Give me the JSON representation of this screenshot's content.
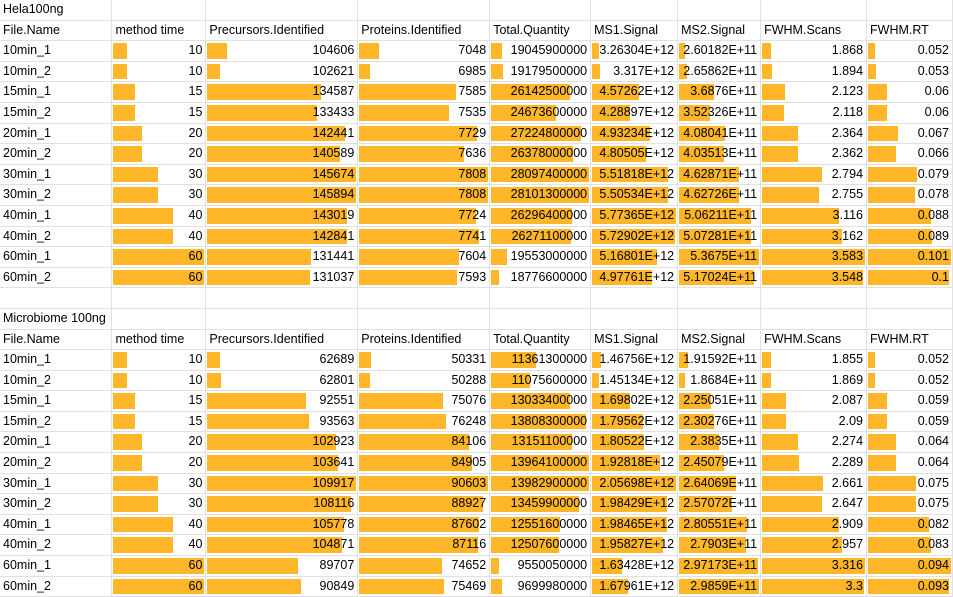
{
  "bar_color": "#ffb628",
  "columns": [
    "File.Name",
    "method time",
    "Precursors.Identified",
    "Proteins.Identified",
    "Total.Quantity",
    "MS1.Signal",
    "MS2.Signal",
    "FWHM.Scans",
    "FWHM.RT"
  ],
  "hela": {
    "title": "Hela100ng",
    "rows": [
      [
        "10min_1",
        "10",
        "104606",
        "7048",
        "19045900000",
        "3.26304E+12",
        "2.60182E+11",
        "1.868",
        "0.052"
      ],
      [
        "10min_2",
        "10",
        "102621",
        "6985",
        "19179500000",
        "3.317E+12",
        "2.65862E+11",
        "1.894",
        "0.053"
      ],
      [
        "15min_1",
        "15",
        "134587",
        "7585",
        "26142500000",
        "4.57262E+12",
        "3.6876E+11",
        "2.123",
        "0.06"
      ],
      [
        "15min_2",
        "15",
        "133433",
        "7535",
        "24673600000",
        "4.28897E+12",
        "3.52326E+11",
        "2.118",
        "0.06"
      ],
      [
        "20min_1",
        "20",
        "142441",
        "7729",
        "27224800000",
        "4.93234E+12",
        "4.08041E+11",
        "2.364",
        "0.067"
      ],
      [
        "20min_2",
        "20",
        "140589",
        "7636",
        "26378000000",
        "4.80505E+12",
        "4.03513E+11",
        "2.362",
        "0.066"
      ],
      [
        "30min_1",
        "30",
        "145674",
        "7808",
        "28097400000",
        "5.51818E+12",
        "4.62871E+11",
        "2.794",
        "0.079"
      ],
      [
        "30min_2",
        "30",
        "145894",
        "7808",
        "28101300000",
        "5.50534E+12",
        "4.62726E+11",
        "2.755",
        "0.078"
      ],
      [
        "40min_1",
        "40",
        "143019",
        "7724",
        "26296400000",
        "5.77365E+12",
        "5.06211E+11",
        "3.116",
        "0.088"
      ],
      [
        "40min_2",
        "40",
        "142841",
        "7741",
        "26271100000",
        "5.72902E+12",
        "5.07281E+11",
        "3.162",
        "0.089"
      ],
      [
        "60min_1",
        "60",
        "131441",
        "7604",
        "19553000000",
        "5.16801E+12",
        "5.3675E+11",
        "3.583",
        "0.101"
      ],
      [
        "60min_2",
        "60",
        "131037",
        "7593",
        "18776600000",
        "4.97761E+12",
        "5.17024E+11",
        "3.548",
        "0.1"
      ]
    ]
  },
  "micro": {
    "title": "Microbiome 100ng",
    "rows": [
      [
        "10min_1",
        "10",
        "62689",
        "50331",
        "11361300000",
        "1.46756E+12",
        "1.91592E+11",
        "1.855",
        "0.052"
      ],
      [
        "10min_2",
        "10",
        "62801",
        "50288",
        "11075600000",
        "1.45134E+12",
        "1.8684E+11",
        "1.869",
        "0.052"
      ],
      [
        "15min_1",
        "15",
        "92551",
        "75076",
        "13033400000",
        "1.69802E+12",
        "2.25051E+11",
        "2.087",
        "0.059"
      ],
      [
        "15min_2",
        "15",
        "93563",
        "76248",
        "13808300000",
        "1.79562E+12",
        "2.30276E+11",
        "2.09",
        "0.059"
      ],
      [
        "20min_1",
        "20",
        "102923",
        "84106",
        "13151100000",
        "1.80522E+12",
        "2.3835E+11",
        "2.274",
        "0.064"
      ],
      [
        "20min_2",
        "20",
        "103641",
        "84905",
        "13964100000",
        "1.92818E+12",
        "2.45079E+11",
        "2.289",
        "0.064"
      ],
      [
        "30min_1",
        "30",
        "109917",
        "90603",
        "13982900000",
        "2.05698E+12",
        "2.64069E+11",
        "2.661",
        "0.075"
      ],
      [
        "30min_2",
        "30",
        "108116",
        "88927",
        "13459900000",
        "1.98429E+12",
        "2.57072E+11",
        "2.647",
        "0.075"
      ],
      [
        "40min_1",
        "40",
        "105778",
        "87602",
        "12551600000",
        "1.98465E+12",
        "2.80551E+11",
        "2.909",
        "0.082"
      ],
      [
        "40min_2",
        "40",
        "104871",
        "87116",
        "12507600000",
        "1.95827E+12",
        "2.7903E+11",
        "2.957",
        "0.083"
      ],
      [
        "60min_1",
        "60",
        "89707",
        "74652",
        "9550050000",
        "1.63428E+12",
        "2.97173E+11",
        "3.316",
        "0.094"
      ],
      [
        "60min_2",
        "60",
        "90849",
        "75469",
        "9699980000",
        "1.67961E+12",
        "2.9859E+11",
        "3.3",
        "0.093"
      ]
    ]
  }
}
